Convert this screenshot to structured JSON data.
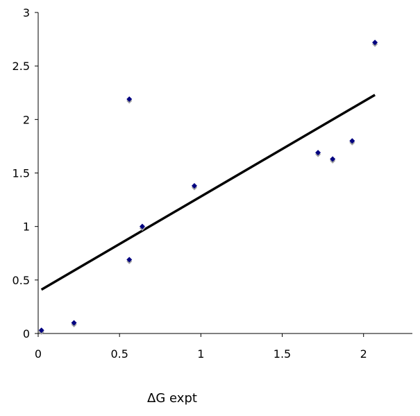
{
  "chart_data": {
    "type": "scatter",
    "title": "",
    "xlabel": "ΔG expt",
    "ylabel": "",
    "xlim": [
      0,
      2.3
    ],
    "ylim": [
      0,
      3
    ],
    "grid": false,
    "legend": "none",
    "x_ticks": [
      0,
      0.5,
      1,
      1.5,
      2
    ],
    "x_tick_labels": [
      "0",
      "0.5",
      "1",
      "1.5",
      "2"
    ],
    "y_ticks": [
      0,
      0.5,
      1,
      1.5,
      2,
      2.5,
      3
    ],
    "y_tick_labels": [
      "0",
      "0.5",
      "1",
      "1.5",
      "2",
      "2.5",
      "3"
    ],
    "series": [
      {
        "marker": "diamond",
        "color": "#000080",
        "shadow_color": "#a0a0a0",
        "points": [
          {
            "x": 0.02,
            "y": 0.03
          },
          {
            "x": 0.22,
            "y": 0.1
          },
          {
            "x": 0.56,
            "y": 2.19
          },
          {
            "x": 0.56,
            "y": 0.69
          },
          {
            "x": 0.64,
            "y": 1.0
          },
          {
            "x": 0.96,
            "y": 1.38
          },
          {
            "x": 1.72,
            "y": 1.69
          },
          {
            "x": 1.81,
            "y": 1.63
          },
          {
            "x": 1.93,
            "y": 1.8
          },
          {
            "x": 2.07,
            "y": 2.72
          }
        ]
      }
    ],
    "trendline": {
      "type": "linear",
      "color": "#000000",
      "x": [
        0.02,
        2.07
      ],
      "y": [
        0.41,
        2.23
      ]
    }
  }
}
